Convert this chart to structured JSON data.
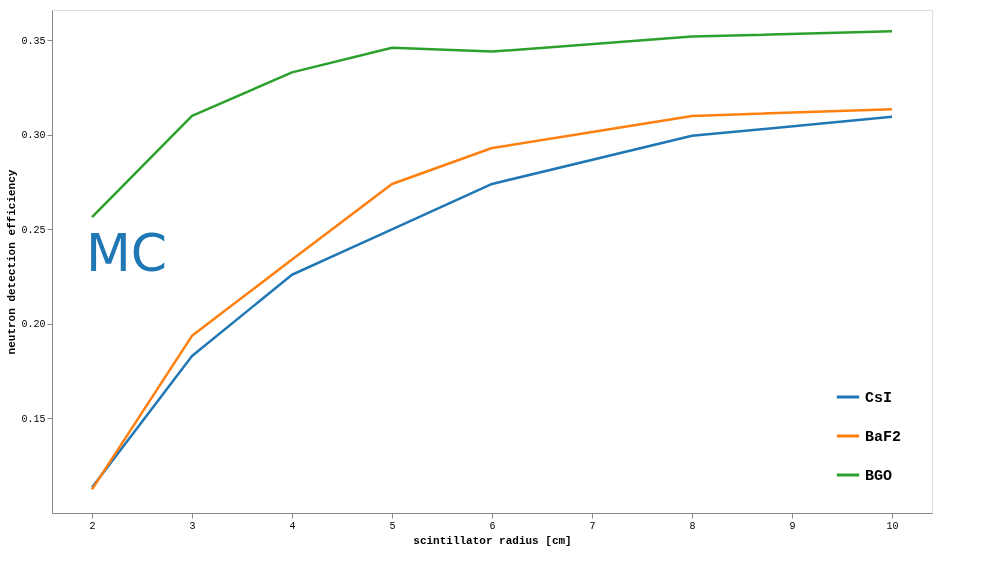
{
  "chart_data": {
    "type": "line",
    "xlabel": "scintillator radius [cm]",
    "ylabel": "neutron detection efficiency",
    "x": [
      2,
      3,
      4,
      5,
      6,
      8,
      10
    ],
    "series": [
      {
        "name": "CsI",
        "color": "#1f77b4",
        "values": [
          0.1135,
          0.183,
          0.226,
          0.25,
          0.274,
          0.2995,
          0.3095
        ]
      },
      {
        "name": "BaF2",
        "color": "#ff7f0e",
        "values": [
          0.1125,
          0.1937,
          0.234,
          0.274,
          0.293,
          0.31,
          0.3135
        ]
      },
      {
        "name": "BGO",
        "color": "#2ca02c",
        "values": [
          0.2565,
          0.31,
          0.333,
          0.346,
          0.344,
          0.352,
          0.3547
        ]
      }
    ],
    "xlim": [
      1.6,
      10.4
    ],
    "xticks": [
      2,
      3,
      4,
      5,
      6,
      7,
      8,
      9,
      10
    ],
    "ylim": [
      0.1,
      0.366
    ],
    "yticks": [
      {
        "value": 0.15,
        "label": "0.15"
      },
      {
        "value": 0.2,
        "label": "0.20"
      },
      {
        "value": 0.25,
        "label": "0.25"
      },
      {
        "value": 0.3,
        "label": "0.30"
      },
      {
        "value": 0.35,
        "label": "0.35"
      }
    ],
    "annotations": [
      "MC"
    ],
    "legend": "bottom right",
    "grid": false,
    "marker": "none",
    "line_style": "solid"
  }
}
